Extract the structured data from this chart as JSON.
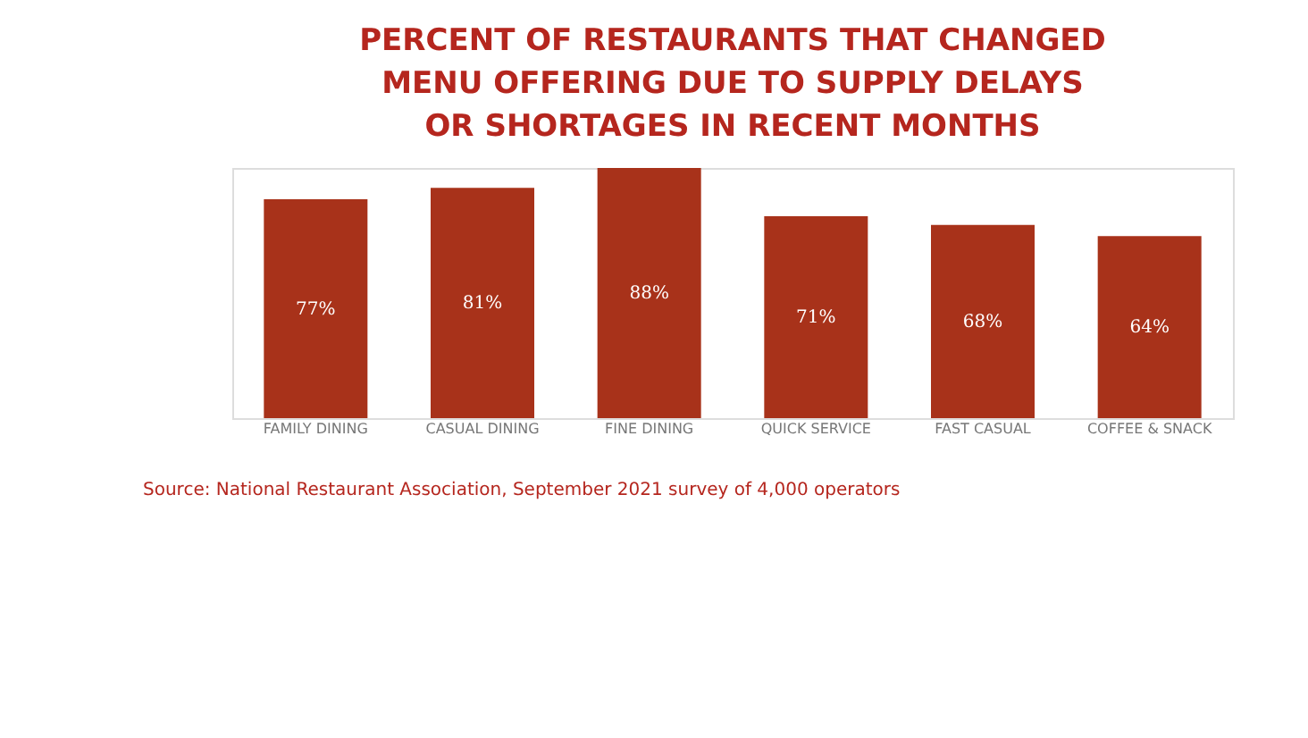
{
  "chart_data": {
    "type": "bar",
    "title": "PERCENT OF RESTAURANTS THAT CHANGED MENU OFFERING DUE TO SUPPLY DELAYS OR SHORTAGES IN RECENT MONTHS",
    "categories": [
      "FAMILY DINING",
      "CASUAL DINING",
      "FINE DINING",
      "QUICK SERVICE",
      "FAST CASUAL",
      "COFFEE & SNACK"
    ],
    "values": [
      77,
      81,
      88,
      71,
      68,
      64
    ],
    "value_labels": [
      "77%",
      "81%",
      "88%",
      "71%",
      "68%",
      "64%"
    ],
    "color": "#a8321a",
    "annotations": [
      "Source:  National Restaurant Association, September 2021 survey of 4,000 operators"
    ]
  }
}
